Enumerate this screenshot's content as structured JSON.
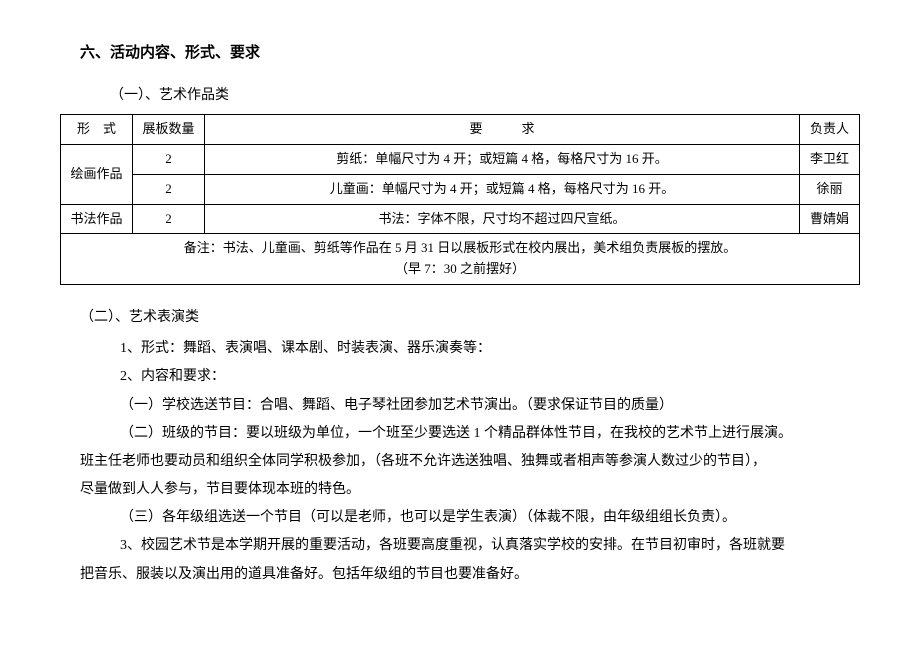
{
  "section_title": "六、活动内容、形式、要求",
  "artwork": {
    "heading": "（一）、艺术作品类",
    "table": {
      "headers": {
        "form": "形　式",
        "count": "展板数量",
        "req": "要　　　求",
        "person": "负责人"
      },
      "rows": [
        {
          "form": "绘画作品",
          "count": "2",
          "req": "剪纸：单幅尺寸为 4 开；或短篇 4 格，每格尺寸为 16 开。",
          "person": "李卫红",
          "rowspan": 2
        },
        {
          "form": "",
          "count": "2",
          "req": "儿童画：单幅尺寸为 4 开；或短篇 4 格，每格尺寸为 16 开。",
          "person": "徐丽"
        },
        {
          "form": "书法作品",
          "count": "2",
          "req": "书法：字体不限，尺寸均不超过四尺宣纸。",
          "person": "曹婧娟"
        }
      ],
      "note_line1": "备注：书法、儿童画、剪纸等作品在 5 月 31 日以展板形式在校内展出，美术组负责展板的摆放。",
      "note_line2": "（早 7：30 之前摆好）"
    }
  },
  "performance": {
    "heading": "（二）、艺术表演类",
    "item1": "1、形式：舞蹈、表演唱、课本剧、时装表演、器乐演奏等：",
    "item2": "2、内容和要求：",
    "sub1": "（一）学校选送节目：合唱、舞蹈、电子琴社团参加艺术节演出。（要求保证节目的质量）",
    "sub2": "（二）班级的节目：要以班级为单位，一个班至少要选送 1 个精品群体性节目，在我校的艺术节上进行展演。",
    "para1": "班主任老师也要动员和组织全体同学积极参加，（各班不允许选送独唱、独舞或者相声等参演人数过少的节目），",
    "para2": "尽量做到人人参与，节目要体现本班的特色。",
    "sub3": "（三）各年级组选送一个节目（可以是老师，也可以是学生表演）（体裁不限，由年级组组长负责）。",
    "item3_line1": "3、校园艺术节是本学期开展的重要活动，各班要高度重视，认真落实学校的安排。在节目初审时，各班就要",
    "item3_line2": "把音乐、服装以及演出用的道具准备好。包括年级组的节目也要准备好。"
  }
}
